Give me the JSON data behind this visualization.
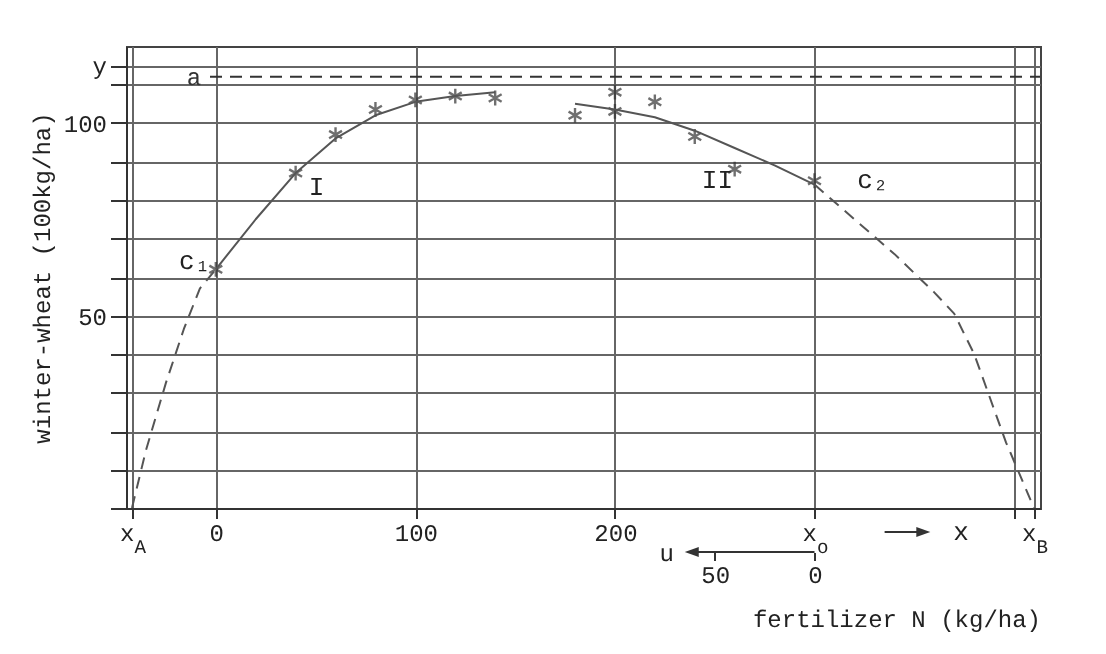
{
  "chart_data": {
    "type": "line",
    "xlabel": "fertilizer N (kg/ha)",
    "ylabel": "winter-wheat (100kg/ha)",
    "x2label": "u",
    "xlim": [
      -45,
      413
    ],
    "ylim": [
      0,
      120
    ],
    "x2lim": [
      345,
      -113
    ],
    "xticks": [
      {
        "value": -42,
        "label": "x$_{A}$"
      },
      0,
      100,
      200,
      {
        "value": 300,
        "label": "x$_{o}$"
      },
      {
        "value": 400,
        "label": null
      },
      {
        "value": 410,
        "label": "x$_{B}$"
      }
    ],
    "x2ticks": [
      50,
      0
    ],
    "yticks": [
      {
        "value": 0,
        "label": null
      },
      {
        "value": 10,
        "label": null
      },
      {
        "value": 20,
        "label": null
      },
      {
        "value": 30,
        "label": null
      },
      {
        "value": 40,
        "label": null
      },
      50,
      {
        "value": 60,
        "label": null
      },
      {
        "value": 70,
        "label": null
      },
      {
        "value": 80,
        "label": null
      },
      {
        "value": 90,
        "label": null
      },
      100,
      {
        "value": 110,
        "label": null
      },
      {
        "value": 115,
        "label": "y"
      }
    ],
    "grid": true,
    "series": [
      {
        "type": "scatter",
        "marker": "cross",
        "color": "#333333",
        "x": [
          0,
          40,
          60,
          80,
          100,
          120,
          140,
          180,
          200,
          200,
          220,
          240,
          260,
          300
        ],
        "values": [
          62,
          87,
          97,
          103.5,
          106,
          107,
          106.5,
          102,
          108,
          103,
          105.5,
          96.5,
          88,
          85
        ]
      },
      {
        "marker": "none",
        "line_style": "solid",
        "color": "#555555",
        "x": [
          0,
          20,
          40,
          60,
          80,
          100,
          120,
          140
        ],
        "values": [
          62,
          75,
          87,
          96,
          102,
          105.5,
          107,
          108
        ]
      },
      {
        "marker": "none",
        "line_style": "dashed",
        "color": "#555555",
        "x": [
          -42,
          -35,
          -25,
          -16,
          -8,
          0
        ],
        "values": [
          0,
          15,
          32.5,
          46.5,
          57,
          62
        ]
      },
      {
        "marker": "none",
        "line_style": "solid",
        "color": "#555555",
        "x": [
          180,
          200,
          220,
          240,
          260,
          280,
          300
        ],
        "values": [
          105,
          103.5,
          101.5,
          98,
          93.5,
          89,
          84
        ]
      },
      {
        "marker": "none",
        "line_style": "dashed",
        "color": "#555555",
        "x": [
          300,
          320,
          340,
          360,
          370,
          380,
          396,
          410
        ],
        "values": [
          84,
          75,
          66,
          56,
          50.5,
          40,
          17,
          0
        ]
      }
    ],
    "ref_lines": [
      {
        "axis": "y",
        "value": 112,
        "label": "a",
        "line_style": "dashed",
        "color": "#333333"
      }
    ],
    "annotations": [
      "I",
      "II",
      "c₁",
      "c₂",
      "x"
    ]
  }
}
